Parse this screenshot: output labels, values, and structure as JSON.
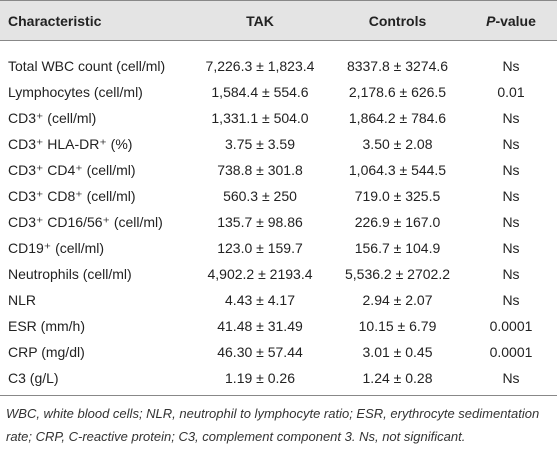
{
  "table": {
    "header": [
      "Characteristic",
      "TAK",
      "Controls",
      "P-value"
    ],
    "rows": [
      [
        "Total WBC count (cell/ml)",
        "7,226.3 ± 1,823.4",
        "8337.8 ± 3274.6",
        "Ns"
      ],
      [
        "Lymphocytes (cell/ml)",
        "1,584.4 ± 554.6",
        "2,178.6 ± 626.5",
        "0.01"
      ],
      [
        "CD3⁺ (cell/ml)",
        "1,331.1 ± 504.0",
        "1,864.2 ± 784.6",
        "Ns"
      ],
      [
        "CD3⁺ HLA-DR⁺ (%)",
        "3.75 ± 3.59",
        "3.50 ± 2.08",
        "Ns"
      ],
      [
        "CD3⁺ CD4⁺ (cell/ml)",
        "738.8 ± 301.8",
        "1,064.3 ± 544.5",
        "Ns"
      ],
      [
        "CD3⁺ CD8⁺ (cell/ml)",
        "560.3 ± 250",
        "719.0 ± 325.5",
        "Ns"
      ],
      [
        "CD3⁺ CD16/56⁺ (cell/ml)",
        "135.7 ± 98.86",
        "226.9 ± 167.0",
        "Ns"
      ],
      [
        "CD19⁺ (cell/ml)",
        "123.0 ± 159.7",
        "156.7 ± 104.9",
        "Ns"
      ],
      [
        "Neutrophils (cell/ml)",
        "4,902.2 ± 2193.4",
        "5,536.2 ± 2702.2",
        "Ns"
      ],
      [
        "NLR",
        "4.43 ± 4.17",
        "2.94 ± 2.07",
        "Ns"
      ],
      [
        "ESR (mm/h)",
        "41.48 ± 31.49",
        "10.15 ± 6.79",
        "0.0001"
      ],
      [
        "CRP (mg/dl)",
        "46.30 ± 57.44",
        "3.01 ± 0.45",
        "0.0001"
      ],
      [
        "C3 (g/L)",
        "1.19 ± 0.26",
        "1.24 ± 0.28",
        "Ns"
      ]
    ]
  },
  "footnote": "WBC, white blood cells; NLR, neutrophil to lymphocyte ratio; ESR, erythrocyte sedimentation rate; CRP, C-reactive protein; C3, complement component 3. Ns, not significant."
}
